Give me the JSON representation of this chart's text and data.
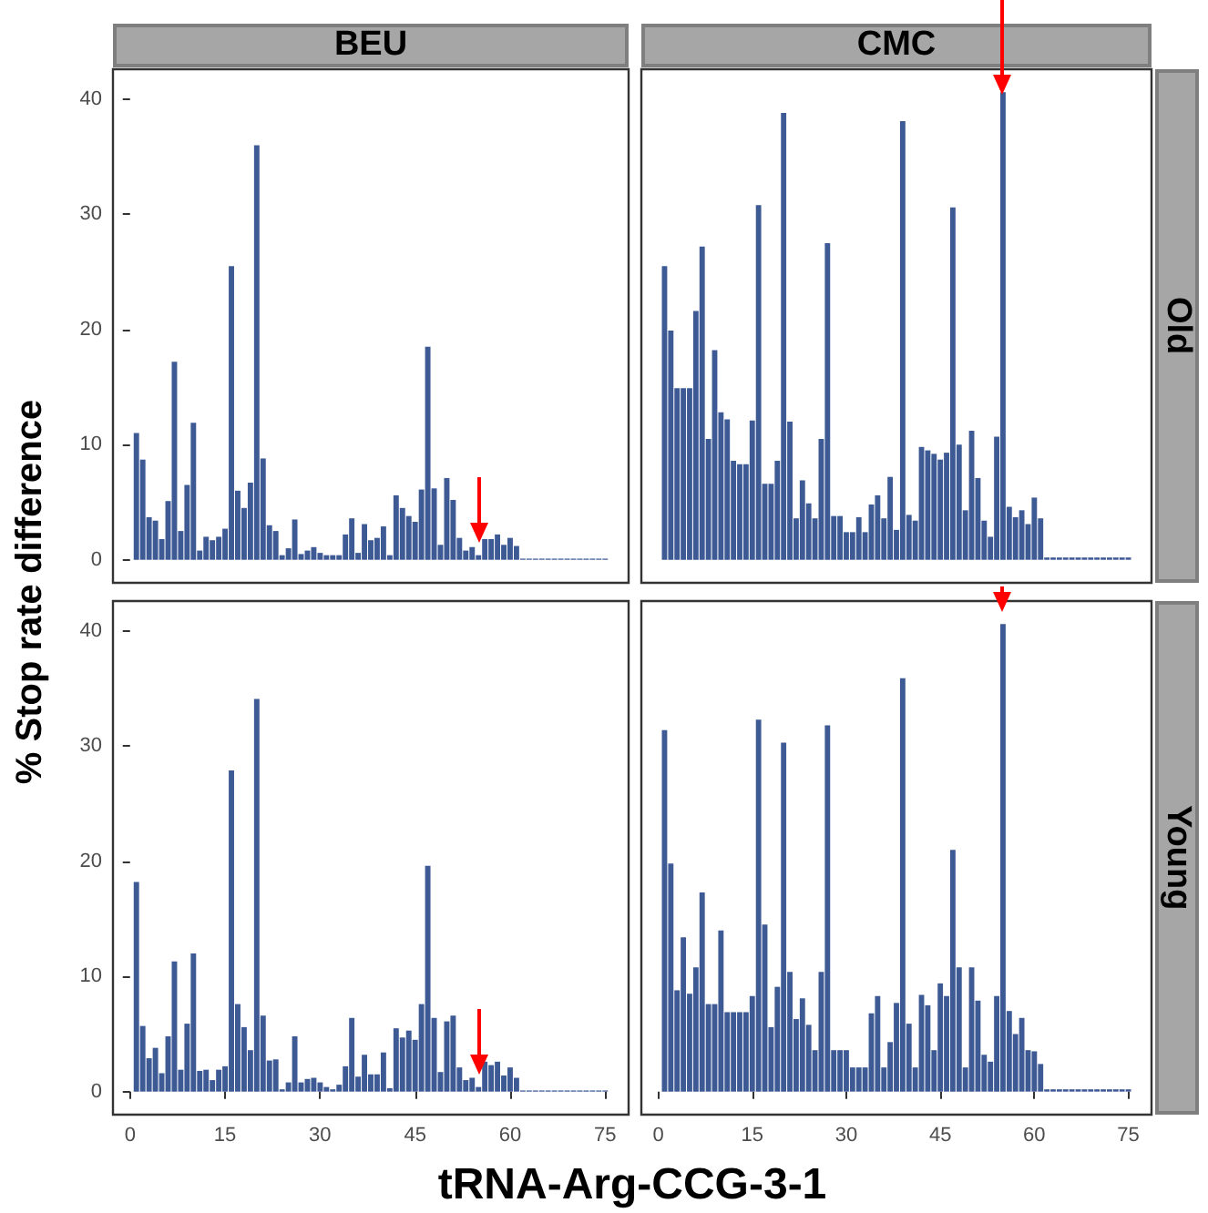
{
  "chart_data": [
    {
      "type": "bar",
      "title": "BEU",
      "ylabel": "% Stop rate difference",
      "color": "#3d5a95",
      "xlim": [
        -2.7,
        78.7
      ],
      "ylim": [
        -2.0,
        42.6
      ],
      "xticks": [
        0,
        15,
        30,
        45,
        60,
        75
      ],
      "yticks": [
        0,
        10,
        20,
        30,
        40
      ],
      "tick_labels": "y",
      "grid": false,
      "x": [
        1,
        2,
        3,
        4,
        5,
        6,
        7,
        8,
        9,
        10,
        11,
        12,
        13,
        14,
        15,
        16,
        17,
        18,
        19,
        20,
        21,
        22,
        23,
        24,
        25,
        26,
        27,
        28,
        29,
        30,
        31,
        32,
        33,
        34,
        35,
        36,
        37,
        38,
        39,
        40,
        41,
        42,
        43,
        44,
        45,
        46,
        47,
        48,
        49,
        50,
        51,
        52,
        53,
        54,
        55,
        56,
        57,
        58,
        59,
        60,
        61,
        62,
        63,
        64,
        65,
        66,
        67,
        68,
        69,
        70,
        71,
        72,
        73,
        74,
        75
      ],
      "values": [
        11.0,
        8.7,
        3.7,
        3.4,
        1.8,
        5.1,
        17.2,
        2.5,
        6.5,
        11.9,
        0.8,
        2.0,
        1.7,
        2.0,
        2.7,
        25.5,
        6.0,
        4.5,
        6.7,
        36.0,
        8.8,
        3.0,
        2.5,
        0.4,
        1.0,
        3.5,
        0.5,
        0.8,
        1.1,
        0.6,
        0.4,
        0.4,
        0.4,
        2.2,
        3.6,
        0.6,
        3.1,
        1.7,
        1.9,
        2.9,
        0.4,
        5.6,
        4.5,
        3.8,
        3.3,
        6.1,
        18.5,
        6.2,
        1.3,
        7.1,
        5.2,
        1.9,
        0.8,
        1.1,
        0.4,
        1.8,
        1.8,
        2.2,
        1.3,
        1.9,
        1.2,
        0.1,
        0.1,
        0.1,
        0.1,
        0.1,
        0.1,
        0.1,
        0.1,
        0.1,
        0.1,
        0.1,
        0.1,
        0.1,
        0.1
      ]
    },
    {
      "type": "bar",
      "title": "CMC",
      "annotations": [
        "Old"
      ],
      "color": "#3d5a95",
      "xlim": [
        -2.7,
        78.7
      ],
      "ylim": [
        -2.0,
        42.6
      ],
      "xticks": [
        0,
        15,
        30,
        45,
        60,
        75
      ],
      "yticks": [
        0,
        10,
        20,
        30,
        40
      ],
      "tick_labels": false,
      "grid": false,
      "x": [
        1,
        2,
        3,
        4,
        5,
        6,
        7,
        8,
        9,
        10,
        11,
        12,
        13,
        14,
        15,
        16,
        17,
        18,
        19,
        20,
        21,
        22,
        23,
        24,
        25,
        26,
        27,
        28,
        29,
        30,
        31,
        32,
        33,
        34,
        35,
        36,
        37,
        38,
        39,
        40,
        41,
        42,
        43,
        44,
        45,
        46,
        47,
        48,
        49,
        50,
        51,
        52,
        53,
        54,
        55,
        56,
        57,
        58,
        59,
        60,
        61,
        62,
        63,
        64,
        65,
        66,
        67,
        68,
        69,
        70,
        71,
        72,
        73,
        74,
        75
      ],
      "values": [
        25.5,
        19.9,
        14.9,
        14.9,
        14.9,
        21.6,
        27.2,
        10.5,
        18.2,
        12.8,
        12.2,
        8.6,
        8.3,
        8.3,
        12.1,
        30.8,
        6.6,
        6.6,
        8.6,
        38.8,
        12.0,
        3.6,
        6.9,
        4.9,
        3.6,
        10.5,
        27.5,
        3.8,
        3.8,
        2.4,
        2.4,
        3.7,
        2.4,
        4.8,
        5.6,
        3.6,
        7.2,
        2.6,
        38.1,
        3.9,
        3.4,
        9.8,
        9.5,
        9.2,
        8.7,
        9.3,
        30.6,
        10.0,
        4.3,
        11.2,
        7.1,
        3.4,
        2.0,
        10.7,
        40.6,
        4.6,
        3.7,
        4.3,
        3.1,
        5.4,
        3.6,
        0.2,
        0.2,
        0.2,
        0.2,
        0.2,
        0.2,
        0.2,
        0.2,
        0.2,
        0.2,
        0.2,
        0.2,
        0.2,
        0.2
      ]
    },
    {
      "type": "bar",
      "xlabel": "tRNA-Arg-CCG-3-1",
      "color": "#3d5a95",
      "xlim": [
        -2.7,
        78.7
      ],
      "ylim": [
        -2.0,
        42.6
      ],
      "xticks": [
        0,
        15,
        30,
        45,
        60,
        75
      ],
      "yticks": [
        0,
        10,
        20,
        30,
        40
      ],
      "grid": false,
      "x": [
        1,
        2,
        3,
        4,
        5,
        6,
        7,
        8,
        9,
        10,
        11,
        12,
        13,
        14,
        15,
        16,
        17,
        18,
        19,
        20,
        21,
        22,
        23,
        24,
        25,
        26,
        27,
        28,
        29,
        30,
        31,
        32,
        33,
        34,
        35,
        36,
        37,
        38,
        39,
        40,
        41,
        42,
        43,
        44,
        45,
        46,
        47,
        48,
        49,
        50,
        51,
        52,
        53,
        54,
        55,
        56,
        57,
        58,
        59,
        60,
        61,
        62,
        63,
        64,
        65,
        66,
        67,
        68,
        69,
        70,
        71,
        72,
        73,
        74,
        75
      ],
      "values": [
        18.2,
        5.7,
        2.9,
        3.8,
        1.6,
        4.8,
        11.3,
        1.9,
        5.9,
        12.0,
        1.8,
        1.9,
        1.0,
        1.9,
        2.2,
        27.9,
        7.6,
        5.6,
        3.6,
        34.1,
        6.6,
        2.7,
        2.8,
        0.2,
        0.8,
        4.8,
        0.8,
        1.1,
        1.2,
        0.8,
        0.4,
        0.2,
        0.6,
        2.2,
        6.4,
        1.3,
        3.2,
        1.5,
        1.5,
        3.4,
        0.3,
        5.5,
        4.7,
        5.3,
        4.5,
        7.6,
        19.6,
        6.4,
        1.7,
        6.1,
        6.6,
        2.1,
        1.0,
        1.2,
        0.4,
        2.6,
        2.3,
        2.6,
        1.4,
        2.1,
        1.2,
        0.1,
        0.1,
        0.1,
        0.1,
        0.1,
        0.1,
        0.1,
        0.1,
        0.1,
        0.1,
        0.1,
        0.1,
        0.1,
        0.1
      ]
    },
    {
      "type": "bar",
      "annotations": [
        "Young"
      ],
      "color": "#3d5a95",
      "xlim": [
        -2.7,
        78.7
      ],
      "ylim": [
        -2.0,
        42.6
      ],
      "xticks": [
        0,
        15,
        30,
        45,
        60,
        75
      ],
      "yticks": [
        0,
        10,
        20,
        30,
        40
      ],
      "tick_labels": "x",
      "grid": false,
      "x": [
        1,
        2,
        3,
        4,
        5,
        6,
        7,
        8,
        9,
        10,
        11,
        12,
        13,
        14,
        15,
        16,
        17,
        18,
        19,
        20,
        21,
        22,
        23,
        24,
        25,
        26,
        27,
        28,
        29,
        30,
        31,
        32,
        33,
        34,
        35,
        36,
        37,
        38,
        39,
        40,
        41,
        42,
        43,
        44,
        45,
        46,
        47,
        48,
        49,
        50,
        51,
        52,
        53,
        54,
        55,
        56,
        57,
        58,
        59,
        60,
        61,
        62,
        63,
        64,
        65,
        66,
        67,
        68,
        69,
        70,
        71,
        72,
        73,
        74,
        75
      ],
      "values": [
        31.4,
        19.8,
        8.8,
        13.4,
        8.5,
        10.8,
        17.3,
        7.6,
        7.6,
        14.0,
        6.9,
        6.9,
        6.9,
        6.9,
        8.3,
        32.3,
        14.5,
        5.6,
        9.1,
        30.3,
        10.4,
        6.3,
        8.1,
        5.8,
        3.6,
        10.4,
        31.8,
        3.6,
        3.6,
        3.6,
        2.1,
        2.1,
        2.1,
        6.8,
        8.3,
        2.1,
        4.3,
        7.7,
        35.9,
        5.9,
        2.1,
        8.4,
        7.5,
        3.6,
        9.4,
        8.3,
        21.0,
        10.8,
        2.1,
        10.8,
        7.9,
        3.2,
        2.6,
        8.3,
        40.6,
        7.0,
        5.0,
        6.4,
        3.6,
        3.5,
        2.4,
        0.2,
        0.2,
        0.2,
        0.2,
        0.2,
        0.2,
        0.2,
        0.2,
        0.2,
        0.2,
        0.2,
        0.2,
        0.2,
        0.2
      ]
    }
  ]
}
